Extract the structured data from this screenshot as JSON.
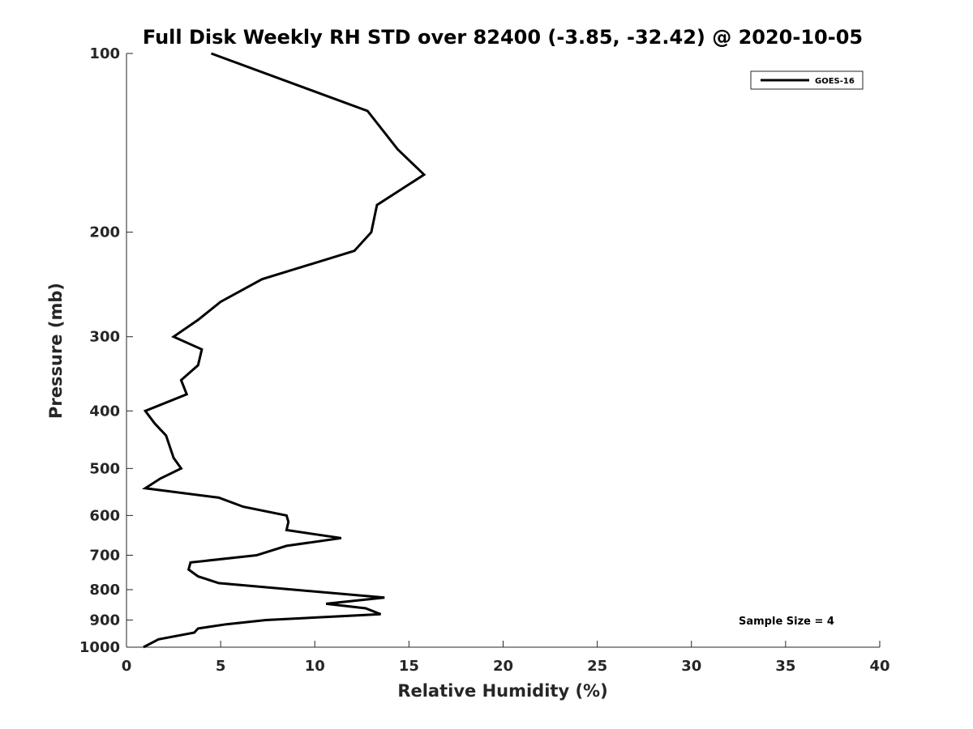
{
  "chart_data": {
    "type": "line",
    "title": "Full Disk Weekly RH STD over 82400 (-3.85, -32.42) @ 2020-10-05",
    "xlabel": "Relative Humidity (%)",
    "ylabel": "Pressure (mb)",
    "xlim": [
      0,
      40
    ],
    "ylim": [
      100,
      1000
    ],
    "y_scale": "log",
    "y_reversed": true,
    "x_ticks": [
      0,
      5,
      10,
      15,
      20,
      25,
      30,
      35,
      40
    ],
    "y_ticks": [
      100,
      200,
      300,
      400,
      500,
      600,
      700,
      800,
      900,
      1000
    ],
    "grid": false,
    "legend_position": "top-right",
    "annotation": "Sample Size = 4",
    "series": [
      {
        "name": "GOES-16",
        "color": "#000000",
        "points": [
          [
            4.5,
            100
          ],
          [
            12.8,
            125
          ],
          [
            14.4,
            145
          ],
          [
            15.8,
            160
          ],
          [
            13.3,
            180
          ],
          [
            13.0,
            200
          ],
          [
            12.1,
            215
          ],
          [
            7.2,
            240
          ],
          [
            5.0,
            262
          ],
          [
            3.8,
            281
          ],
          [
            2.5,
            300
          ],
          [
            4.0,
            315
          ],
          [
            3.8,
            335
          ],
          [
            2.9,
            355
          ],
          [
            3.2,
            375
          ],
          [
            1.0,
            400
          ],
          [
            1.5,
            420
          ],
          [
            2.1,
            440
          ],
          [
            2.5,
            480
          ],
          [
            2.9,
            500
          ],
          [
            1.8,
            520
          ],
          [
            1.0,
            540
          ],
          [
            4.9,
            560
          ],
          [
            6.2,
            580
          ],
          [
            8.5,
            600
          ],
          [
            8.6,
            615
          ],
          [
            8.5,
            635
          ],
          [
            11.4,
            655
          ],
          [
            8.5,
            675
          ],
          [
            6.9,
            700
          ],
          [
            3.4,
            720
          ],
          [
            3.3,
            740
          ],
          [
            3.8,
            760
          ],
          [
            4.9,
            780
          ],
          [
            13.7,
            825
          ],
          [
            10.6,
            845
          ],
          [
            12.7,
            860
          ],
          [
            13.5,
            880
          ],
          [
            7.4,
            900
          ],
          [
            5.3,
            915
          ],
          [
            3.8,
            930
          ],
          [
            3.6,
            945
          ],
          [
            1.7,
            970
          ],
          [
            0.9,
            1000
          ]
        ]
      }
    ]
  }
}
